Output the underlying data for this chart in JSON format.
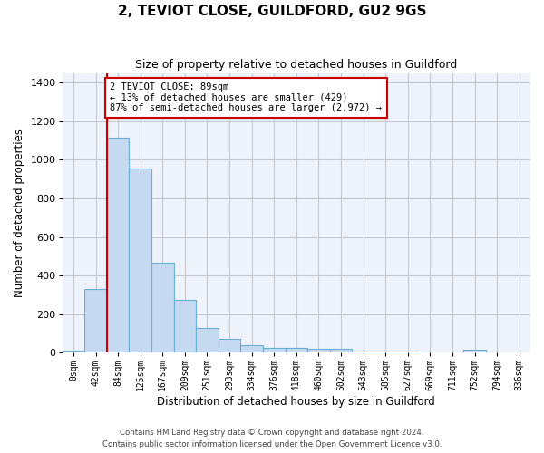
{
  "title": "2, TEVIOT CLOSE, GUILDFORD, GU2 9GS",
  "subtitle": "Size of property relative to detached houses in Guildford",
  "xlabel": "Distribution of detached houses by size in Guildford",
  "ylabel": "Number of detached properties",
  "footnote1": "Contains HM Land Registry data © Crown copyright and database right 2024.",
  "footnote2": "Contains public sector information licensed under the Open Government Licence v3.0.",
  "bar_color": "#c5d9f1",
  "bar_edge_color": "#6baed6",
  "annotation_box_color": "#cc0000",
  "annotation_line_color": "#cc0000",
  "grid_color": "#c8c8d0",
  "background_color": "#eef2fa",
  "tick_labels": [
    "0sqm",
    "42sqm",
    "84sqm",
    "125sqm",
    "167sqm",
    "209sqm",
    "251sqm",
    "293sqm",
    "334sqm",
    "376sqm",
    "418sqm",
    "460sqm",
    "502sqm",
    "543sqm",
    "585sqm",
    "627sqm",
    "669sqm",
    "711sqm",
    "752sqm",
    "794sqm",
    "836sqm"
  ],
  "bar_values": [
    10,
    330,
    1115,
    955,
    465,
    275,
    130,
    70,
    40,
    25,
    25,
    20,
    20,
    5,
    5,
    5,
    0,
    0,
    15,
    0,
    0
  ],
  "ylim": [
    0,
    1450
  ],
  "yticks": [
    0,
    200,
    400,
    600,
    800,
    1000,
    1200,
    1400
  ],
  "annotation_text": "2 TEVIOT CLOSE: 89sqm\n← 13% of detached houses are smaller (429)\n87% of semi-detached houses are larger (2,972) →",
  "vline_x": 1.5
}
